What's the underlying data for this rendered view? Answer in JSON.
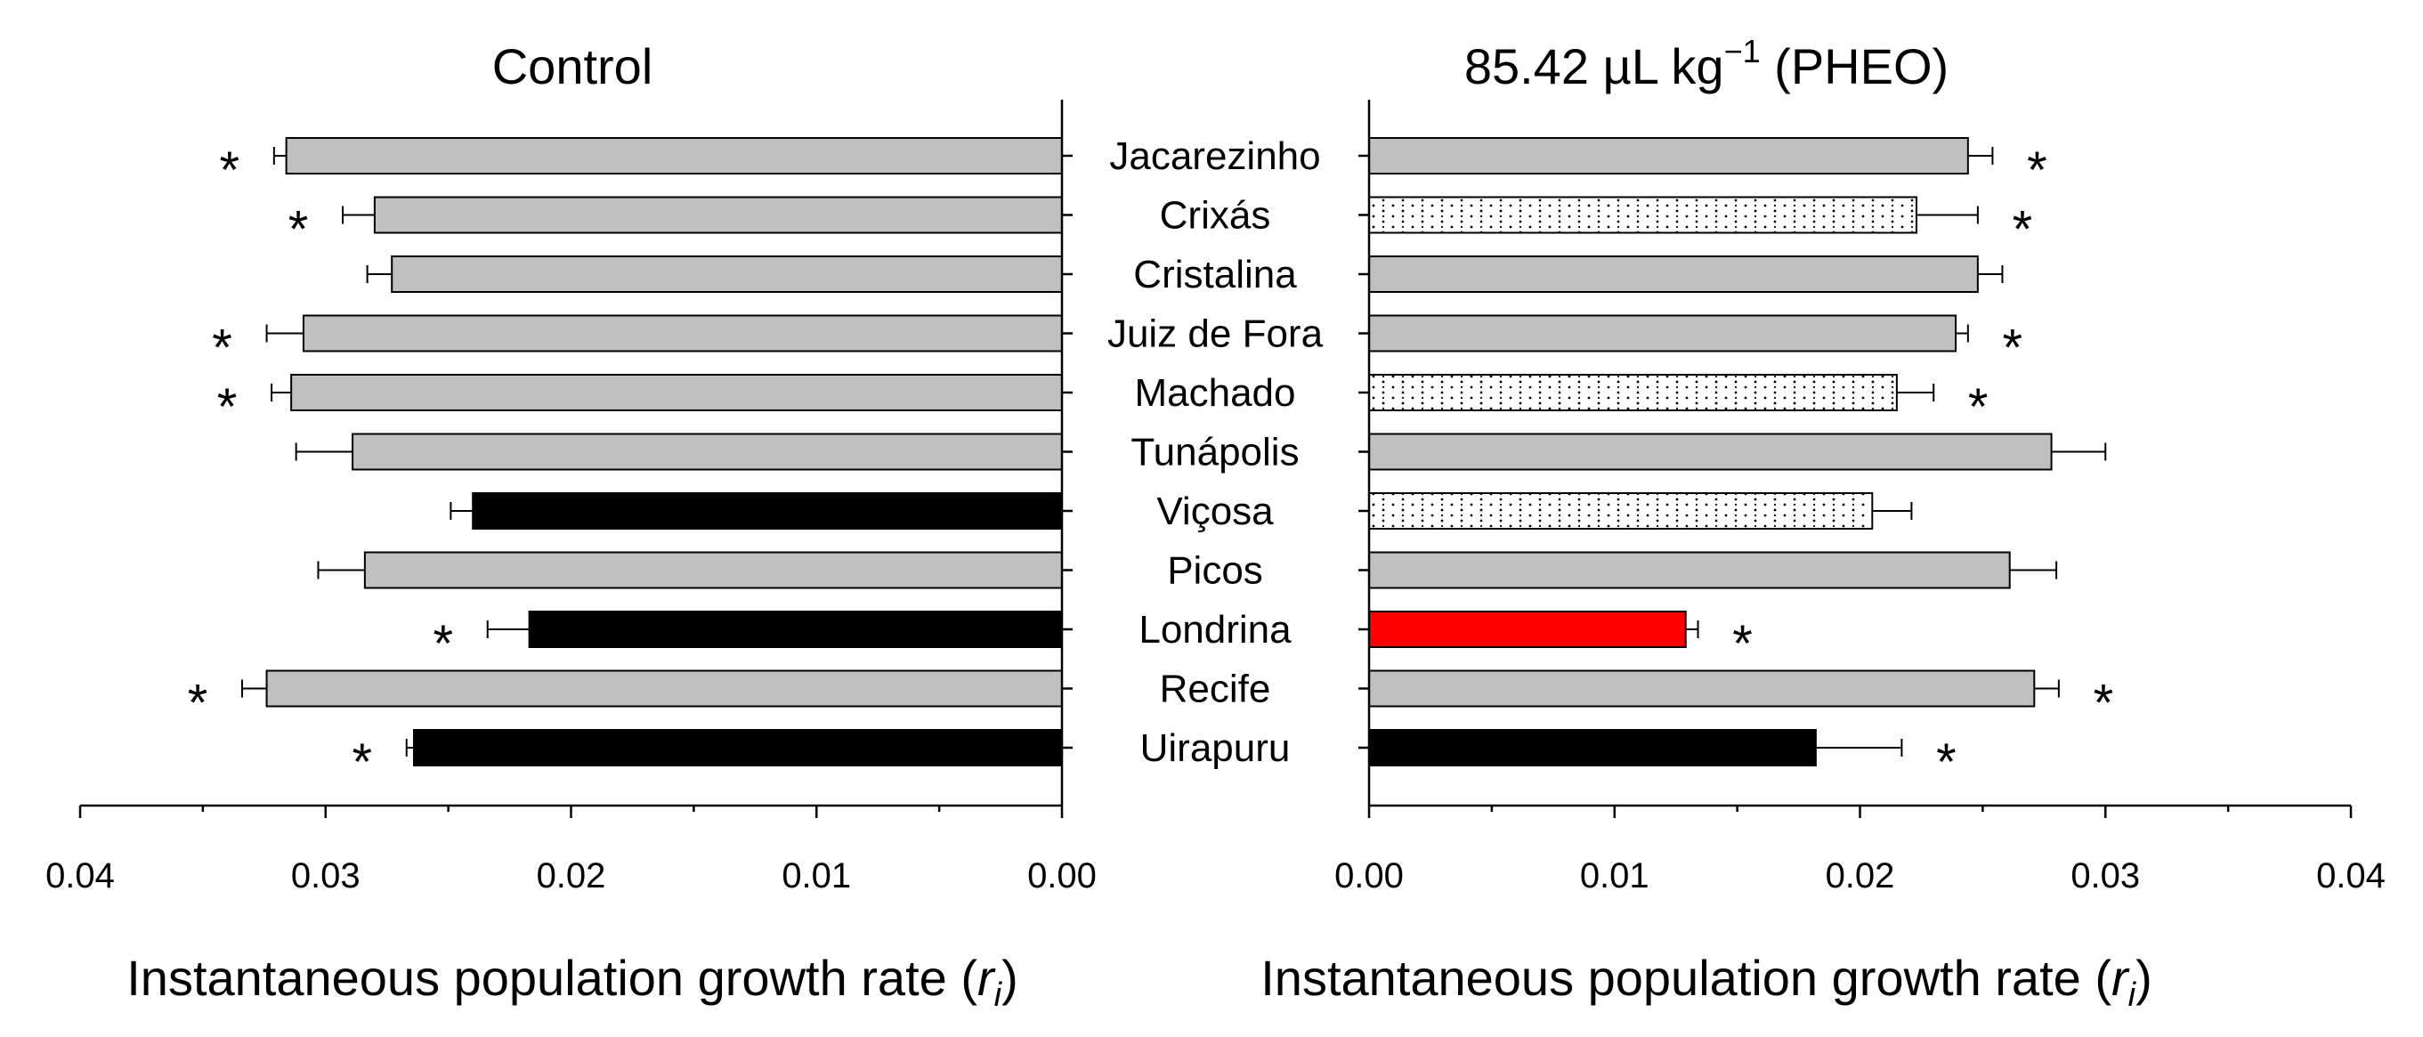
{
  "chart_data": {
    "type": "bar",
    "orientation": "horizontal",
    "categories": [
      "Jacarezinho",
      "Crixás",
      "Cristalina",
      "Juiz de Fora",
      "Machado",
      "Tunápolis",
      "Viçosa",
      "Picos",
      "Londrina",
      "Recife",
      "Uirapuru"
    ],
    "x_ticks": [
      0.04,
      0.03,
      0.02,
      0.01,
      0.0
    ],
    "x_tick_labels": [
      "0.04",
      "0.03",
      "0.02",
      "0.01",
      "0.00"
    ],
    "xlim": [
      0,
      0.04
    ],
    "panels": [
      {
        "title": "Control",
        "xlabel": "Instantaneous population growth rate",
        "xlabel_symbol": "r",
        "xlabel_subscript": "i",
        "direction": "reversed",
        "values": [
          0.0316,
          0.028,
          0.0273,
          0.0309,
          0.0314,
          0.0289,
          0.024,
          0.0284,
          0.0217,
          0.0324,
          0.0264
        ],
        "errors": [
          0.0005,
          0.0013,
          0.001,
          0.0015,
          0.0008,
          0.0023,
          0.0009,
          0.0019,
          0.0017,
          0.001,
          0.0003
        ],
        "significant": [
          true,
          true,
          false,
          true,
          true,
          false,
          false,
          false,
          true,
          true,
          true
        ],
        "fills": [
          "gray",
          "gray",
          "gray",
          "gray",
          "gray",
          "gray",
          "black",
          "gray",
          "black",
          "gray",
          "black"
        ]
      },
      {
        "title_main": "85.42 µL kg",
        "title_sup": "−1",
        "title_tail": " (PHEO)",
        "xlabel": "Instantaneous population growth rate",
        "xlabel_symbol": "r",
        "xlabel_subscript": "i",
        "direction": "normal",
        "values": [
          0.0244,
          0.0223,
          0.0248,
          0.0239,
          0.0215,
          0.0278,
          0.0205,
          0.0261,
          0.0129,
          0.0271,
          0.0182
        ],
        "errors": [
          0.001,
          0.0025,
          0.001,
          0.0005,
          0.0015,
          0.0022,
          0.0016,
          0.0019,
          0.0005,
          0.001,
          0.0035
        ],
        "significant": [
          true,
          true,
          false,
          true,
          true,
          false,
          false,
          false,
          true,
          true,
          true
        ],
        "fills": [
          "gray",
          "dotted",
          "gray",
          "gray",
          "dotted",
          "gray",
          "dotted",
          "gray",
          "red",
          "gray",
          "black"
        ]
      }
    ],
    "significance_marker": "*",
    "colors": {
      "gray": "#c0c0c0",
      "black": "#000000",
      "red": "#ff0000",
      "dotted": "#ffffff"
    }
  }
}
